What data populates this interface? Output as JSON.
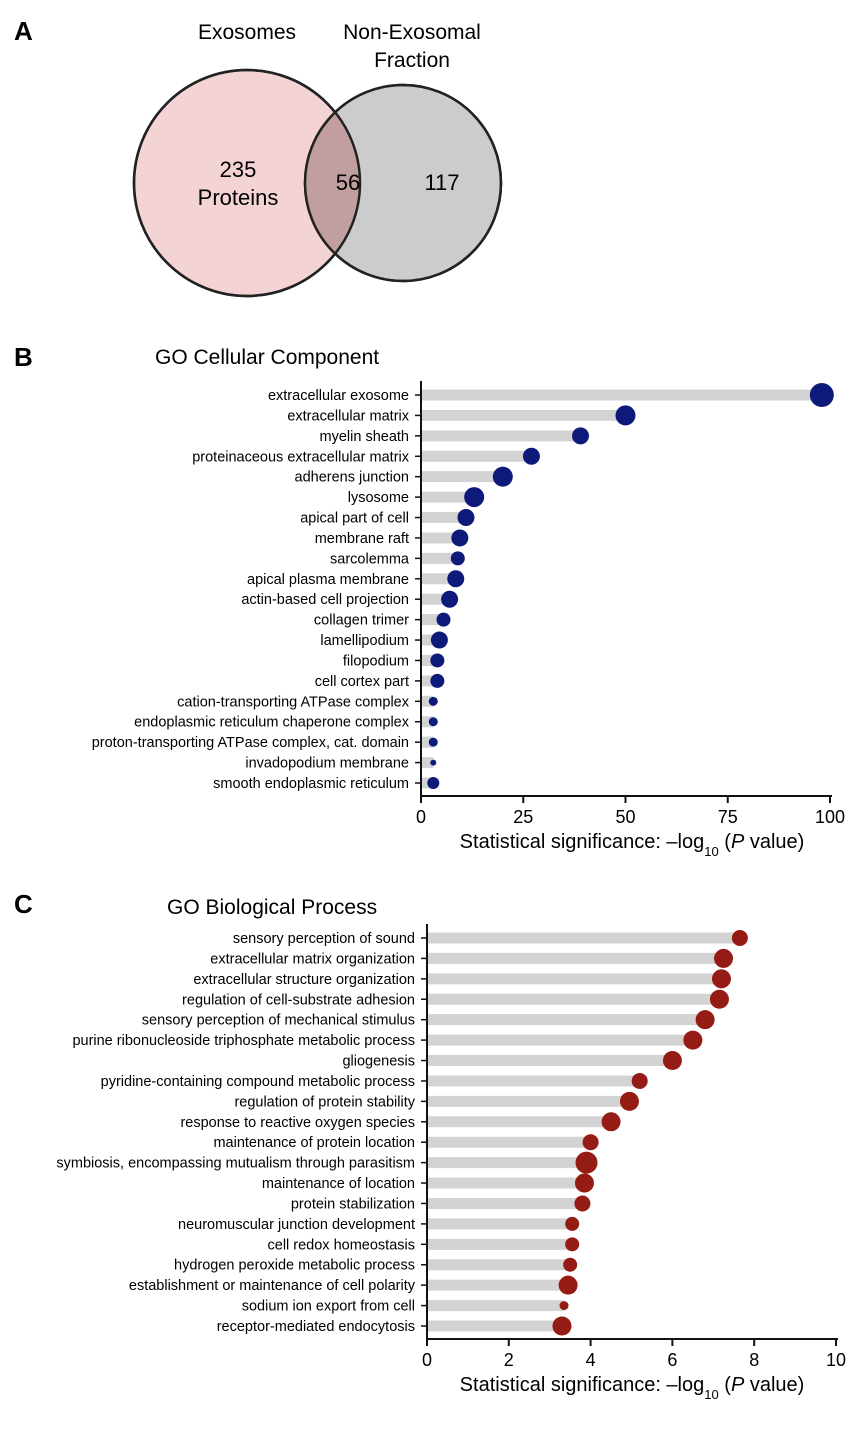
{
  "venn": {
    "panel": "A",
    "left_title": "Exosomes",
    "right_title_line1": "Non-Exosomal",
    "right_title_line2": "Fraction",
    "left_count": "235",
    "left_unit": "Proteins",
    "overlap_count": "56",
    "right_count": "117",
    "colors": {
      "left": "#f3d3d4",
      "overlap": "#c19fa0",
      "right": "#cccccc",
      "stroke": "#222222"
    }
  },
  "chart_data": [
    {
      "type": "scatter",
      "style": "lollipop",
      "panel": "B",
      "title": "GO Cellular Component",
      "xlabel_prefix": "Statistical significance: –log",
      "xlabel_sub": "10",
      "xlabel_open": " (",
      "xlabel_italic": "P",
      "xlabel_suffix": " value)",
      "xlim": [
        0,
        100
      ],
      "xticks": [
        0,
        25,
        50,
        75,
        100
      ],
      "color": "#0d1a7a",
      "categories": [
        "extracellular exosome",
        "extracellular matrix",
        "myelin sheath",
        "proteinaceous extracellular matrix",
        "adherens junction",
        "lysosome",
        "apical part of cell",
        "membrane raft",
        "sarcolemma",
        "apical plasma membrane",
        "actin-based cell projection",
        "collagen trimer",
        "lamellipodium",
        "filopodium",
        "cell cortex part",
        "cation-transporting ATPase complex",
        "endoplasmic reticulum chaperone complex",
        "proton-transporting ATPase complex, cat. domain",
        "invadopodium membrane",
        "smooth endoplasmic reticulum"
      ],
      "values": [
        98,
        50,
        39,
        27,
        20,
        13,
        11,
        9.5,
        9,
        8.5,
        7,
        5.5,
        4.5,
        4,
        4,
        3,
        3,
        3,
        3,
        3
      ],
      "dot_sizes": [
        12,
        10,
        8.5,
        8.5,
        10,
        10,
        8.5,
        8.5,
        7,
        8.5,
        8.5,
        7,
        8.5,
        7,
        7,
        4.5,
        4.5,
        4.5,
        3,
        6
      ]
    },
    {
      "type": "scatter",
      "style": "lollipop",
      "panel": "C",
      "title": "GO Biological Process",
      "xlabel_prefix": "Statistical significance: –log",
      "xlabel_sub": "10",
      "xlabel_open": " (",
      "xlabel_italic": "P",
      "xlabel_suffix": " value)",
      "xlim": [
        0,
        10
      ],
      "xticks": [
        0,
        2,
        4,
        6,
        8,
        10
      ],
      "color": "#951c14",
      "categories": [
        "sensory perception of sound",
        "extracellular matrix organization",
        "extracellular structure organization",
        "regulation of cell-substrate adhesion",
        "sensory perception of mechanical stimulus",
        "purine ribonucleoside triphosphate metabolic process",
        "gliogenesis",
        "pyridine-containing compound metabolic process",
        "regulation of protein stability",
        "response to reactive oxygen species",
        "maintenance of protein location",
        "symbiosis, encompassing mutualism through parasitism",
        "maintenance of location",
        "protein stabilization",
        "neuromuscular junction development",
        "cell redox homeostasis",
        "hydrogen peroxide metabolic process",
        "establishment or maintenance of cell polarity",
        "sodium ion export from cell",
        "receptor-mediated endocytosis"
      ],
      "values": [
        7.65,
        7.25,
        7.2,
        7.15,
        6.8,
        6.5,
        6.0,
        5.2,
        4.95,
        4.5,
        4.0,
        3.9,
        3.85,
        3.8,
        3.55,
        3.55,
        3.5,
        3.45,
        3.35,
        3.3
      ],
      "dot_sizes": [
        8,
        9.5,
        9.5,
        9.5,
        9.5,
        9.5,
        9.5,
        8,
        9.5,
        9.5,
        8,
        11,
        9.5,
        8,
        7,
        7,
        7,
        9.5,
        4.5,
        9.5
      ]
    }
  ]
}
